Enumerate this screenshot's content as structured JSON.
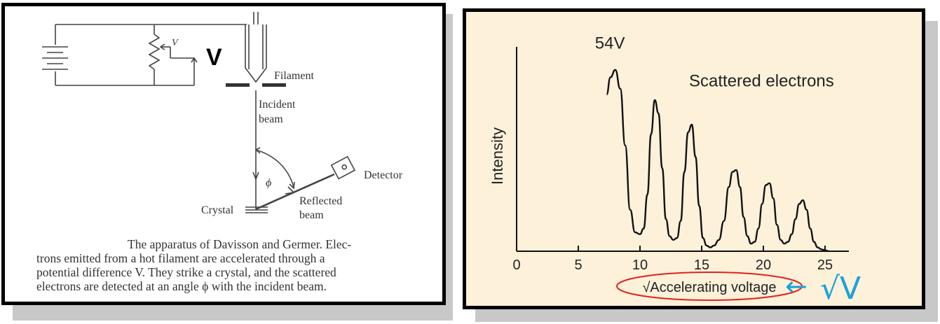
{
  "apparatus": {
    "labels": {
      "voltage_small": "V",
      "voltage_big": "V",
      "filament": "Filament",
      "incident_line1": "Incident",
      "incident_line2": "beam",
      "angle": "ϕ",
      "detector": "Detector",
      "crystal": "Crystal",
      "reflected_line1": "Reflected",
      "reflected_line2": "beam"
    },
    "caption_lines": [
      "The apparatus of Davisson and Germer. Elec-",
      "trons emitted from a hot filament are accelerated through a",
      "potential difference V. They strike a crystal, and the scattered",
      "electrons are detected at an angle ϕ with the incident beam."
    ]
  },
  "chart_data": {
    "type": "line",
    "title": "",
    "xlabel": "√Accelerating voltage",
    "ylabel": "Intensity",
    "xlim": [
      0,
      27
    ],
    "ylim": [
      0,
      1
    ],
    "x_ticks": [
      0,
      5,
      10,
      15,
      20,
      25
    ],
    "grid": false,
    "series": [
      {
        "x": [
          7.3,
          7.6,
          8.0,
          8.4,
          8.8,
          9.2,
          9.6,
          10.0,
          10.3,
          10.6,
          10.9,
          11.2,
          11.5,
          11.8,
          12.1,
          12.4,
          12.7,
          13.0,
          13.3,
          13.6,
          13.9,
          14.2,
          14.5,
          14.8,
          15.1,
          15.4,
          15.7,
          16.0,
          16.4,
          16.8,
          17.2,
          17.5,
          17.8,
          18.1,
          18.4,
          18.7,
          19.0,
          19.3,
          19.6,
          19.9,
          20.2,
          20.5,
          20.8,
          21.1,
          21.4,
          21.7,
          22.0,
          22.3,
          22.6,
          22.9,
          23.2,
          23.5,
          23.8,
          24.1,
          24.4,
          24.7,
          25.0,
          25.3
        ],
        "y": [
          0.83,
          0.92,
          0.96,
          0.86,
          0.56,
          0.22,
          0.1,
          0.09,
          0.12,
          0.3,
          0.62,
          0.8,
          0.73,
          0.44,
          0.17,
          0.08,
          0.06,
          0.07,
          0.16,
          0.42,
          0.63,
          0.67,
          0.5,
          0.24,
          0.07,
          0.03,
          0.02,
          0.03,
          0.06,
          0.16,
          0.34,
          0.42,
          0.43,
          0.34,
          0.18,
          0.08,
          0.04,
          0.05,
          0.12,
          0.25,
          0.35,
          0.36,
          0.28,
          0.14,
          0.06,
          0.04,
          0.05,
          0.09,
          0.17,
          0.25,
          0.27,
          0.22,
          0.12,
          0.05,
          0.02,
          0.01,
          0.005,
          0.0
        ]
      }
    ],
    "annotations": [
      {
        "text": "54V",
        "x": 7.6,
        "y": 1.05
      },
      {
        "text": "Scattered electrons",
        "x": 15.0,
        "y": 0.85
      }
    ],
    "handwriting": {
      "arrow": "←",
      "symbol": "√V",
      "color": "#1aa3d9"
    },
    "xlabel_circle_color": "#e0221e"
  }
}
